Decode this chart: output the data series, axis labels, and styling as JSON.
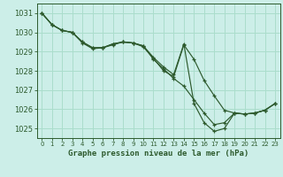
{
  "background_color": "#cceee8",
  "grid_color": "#aaddcc",
  "line_color": "#2d5a2d",
  "tick_color": "#2d5a2d",
  "xlabel": "Graphe pression niveau de la mer (hPa)",
  "xlabel_color": "#2d5a2d",
  "ylim": [
    1024.5,
    1031.5
  ],
  "xlim": [
    -0.5,
    23.5
  ],
  "yticks": [
    1025,
    1026,
    1027,
    1028,
    1029,
    1030,
    1031
  ],
  "xticks": [
    0,
    1,
    2,
    3,
    4,
    5,
    6,
    7,
    8,
    9,
    10,
    11,
    12,
    13,
    14,
    15,
    16,
    17,
    18,
    19,
    20,
    21,
    22,
    23
  ],
  "series": [
    [
      1031.0,
      1030.4,
      1030.1,
      1030.0,
      1029.5,
      1029.2,
      1029.2,
      1029.4,
      1029.5,
      1029.45,
      1029.3,
      1028.6,
      1028.1,
      1027.6,
      1027.2,
      1026.5,
      1025.8,
      1025.2,
      1025.3,
      1025.8,
      1025.75,
      1025.8,
      1025.95,
      1026.3
    ],
    [
      1031.0,
      1030.4,
      1030.1,
      1030.0,
      1029.45,
      1029.15,
      1029.2,
      1029.35,
      1029.5,
      1029.45,
      1029.25,
      1028.65,
      1028.0,
      1027.7,
      1029.35,
      1028.6,
      1027.5,
      1026.7,
      1025.95,
      1025.8,
      1025.75,
      1025.8,
      1025.95,
      1026.3
    ],
    [
      1031.0,
      1030.4,
      1030.1,
      1030.0,
      1029.5,
      1029.2,
      1029.2,
      1029.4,
      1029.5,
      1029.45,
      1029.3,
      1028.7,
      1028.2,
      1027.8,
      1029.4,
      1026.3,
      1025.3,
      1024.85,
      1025.0,
      1025.8,
      1025.75,
      1025.8,
      1025.95,
      1026.3
    ]
  ]
}
